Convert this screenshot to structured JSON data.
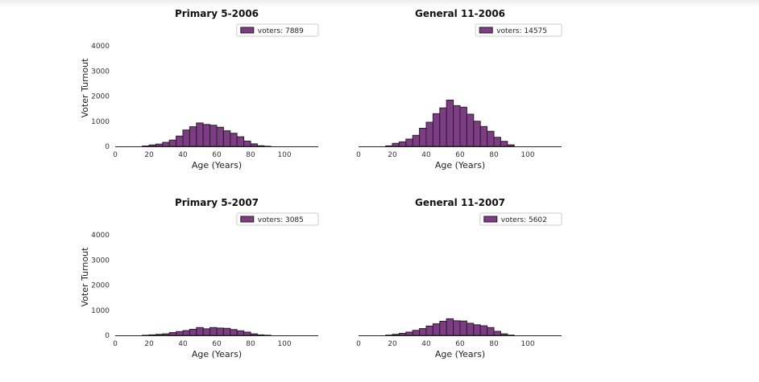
{
  "chart_data": [
    {
      "type": "bar",
      "title": "Primary 5-2006",
      "xlabel": "Age (Years)",
      "ylabel": "Voter Turnout",
      "legend": "voters: 7889",
      "legend_position": "top-right",
      "xlim": [
        0,
        120
      ],
      "ylim": [
        0,
        4000
      ],
      "xticks": [
        "0",
        "20",
        "40",
        "60",
        "80",
        "100"
      ],
      "yticks": [
        "0",
        "1000",
        "2000",
        "3000",
        "4000"
      ],
      "show_yticks": true,
      "bin_width": 4,
      "bins": [
        16,
        20,
        24,
        28,
        32,
        36,
        40,
        44,
        48,
        52,
        56,
        60,
        64,
        68,
        72,
        76,
        80,
        84,
        88
      ],
      "values": [
        15,
        55,
        90,
        160,
        250,
        410,
        650,
        780,
        930,
        870,
        840,
        760,
        620,
        520,
        380,
        210,
        100,
        25,
        5
      ]
    },
    {
      "type": "bar",
      "title": "General 11-2006",
      "xlabel": "Age (Years)",
      "ylabel": "",
      "legend": "voters: 14575",
      "legend_position": "top-right",
      "xlim": [
        0,
        120
      ],
      "ylim": [
        0,
        4000
      ],
      "xticks": [
        "0",
        "20",
        "40",
        "60",
        "80",
        "100"
      ],
      "yticks": [],
      "show_yticks": false,
      "bin_width": 4,
      "bins": [
        16,
        20,
        24,
        28,
        32,
        36,
        40,
        44,
        48,
        52,
        56,
        60,
        64,
        68,
        72,
        76,
        80,
        84,
        88
      ],
      "values": [
        20,
        120,
        180,
        290,
        440,
        720,
        960,
        1300,
        1530,
        1840,
        1620,
        1560,
        1280,
        1000,
        790,
        600,
        360,
        200,
        60
      ]
    },
    {
      "type": "bar",
      "title": "Primary 5-2007",
      "xlabel": "Age (Years)",
      "ylabel": "Voter Turnout",
      "legend": "voters: 3085",
      "legend_position": "top-right",
      "xlim": [
        0,
        120
      ],
      "ylim": [
        0,
        4000
      ],
      "xticks": [
        "0",
        "20",
        "40",
        "60",
        "80",
        "100"
      ],
      "yticks": [
        "0",
        "1000",
        "2000",
        "3000",
        "4000"
      ],
      "show_yticks": true,
      "bin_width": 4,
      "bins": [
        16,
        20,
        24,
        28,
        32,
        36,
        40,
        44,
        48,
        52,
        56,
        60,
        64,
        68,
        72,
        76,
        80,
        84,
        88
      ],
      "values": [
        5,
        20,
        40,
        60,
        110,
        150,
        190,
        240,
        310,
        260,
        310,
        290,
        280,
        230,
        180,
        130,
        60,
        20,
        5
      ]
    },
    {
      "type": "bar",
      "title": "General 11-2007",
      "xlabel": "Age (Years)",
      "ylabel": "",
      "legend": "voters: 5602",
      "legend_position": "top-right",
      "xlim": [
        0,
        120
      ],
      "ylim": [
        0,
        4000
      ],
      "xticks": [
        "0",
        "20",
        "40",
        "60",
        "80",
        "100"
      ],
      "yticks": [],
      "show_yticks": false,
      "bin_width": 4,
      "bins": [
        16,
        20,
        24,
        28,
        32,
        36,
        40,
        44,
        48,
        52,
        56,
        60,
        64,
        68,
        72,
        76,
        80,
        84,
        88
      ],
      "values": [
        10,
        40,
        80,
        130,
        200,
        270,
        370,
        460,
        560,
        660,
        580,
        570,
        480,
        420,
        380,
        310,
        160,
        60,
        10
      ]
    }
  ],
  "style": {
    "bar_color": "#7c3d82",
    "bar_edge_color": "#2b1a2e"
  }
}
